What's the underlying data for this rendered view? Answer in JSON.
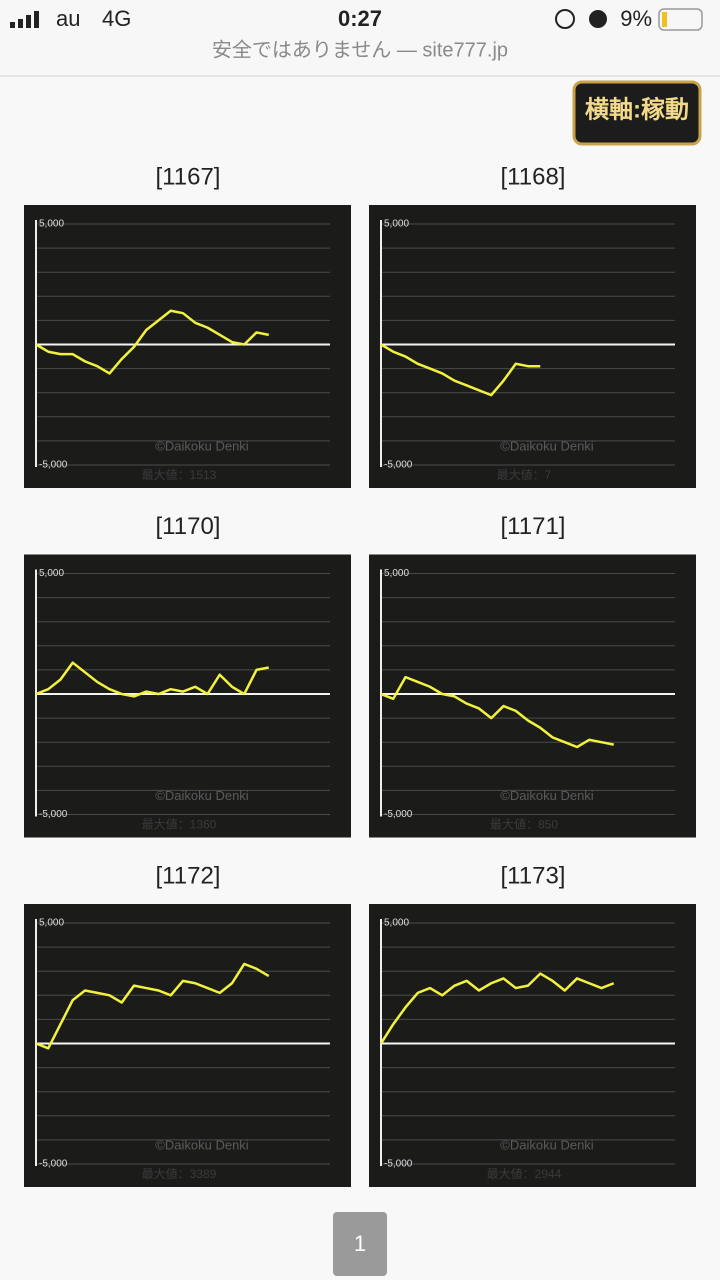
{
  "status_bar": {
    "carrier": "au",
    "network": "4G",
    "time": "0:27",
    "battery": "9%"
  },
  "address": "安全ではありません — site777.jp",
  "toggle_button": "横軸:稼動",
  "pagination": [
    "1"
  ],
  "chart_data": [
    {
      "type": "line",
      "title": "[1167]",
      "ylim": [
        -5000,
        5000
      ],
      "yticks": [
        {
          "value": 5000,
          "label": "5,000"
        },
        {
          "value": -5000,
          "label": "-5,000"
        }
      ],
      "grid_lines": [
        4000,
        3000,
        2000,
        1000,
        0,
        -1000,
        -2000,
        -3000,
        -4000
      ],
      "xlim": [
        0,
        24
      ],
      "color": "#f2f23c",
      "values": [
        0,
        -300,
        -400,
        -400,
        -700,
        -900,
        -1200,
        -600,
        -100,
        600,
        1000,
        1400,
        1300,
        900,
        700,
        400,
        100,
        0,
        500,
        400
      ],
      "watermark": "©Daikoku Denki",
      "annotation": "最大値：1513"
    },
    {
      "type": "line",
      "title": "[1168]",
      "ylim": [
        -5000,
        5000
      ],
      "yticks": [
        {
          "value": 5000,
          "label": "5,000"
        },
        {
          "value": -5000,
          "label": "-5,000"
        }
      ],
      "grid_lines": [
        4000,
        3000,
        2000,
        1000,
        0,
        -1000,
        -2000,
        -3000,
        -4000
      ],
      "xlim": [
        0,
        24
      ],
      "color": "#f2f23c",
      "values": [
        0,
        -300,
        -500,
        -800,
        -1000,
        -1200,
        -1500,
        -1700,
        -1900,
        -2100,
        -1500,
        -800,
        -900,
        -900
      ],
      "watermark": "©Daikoku Denki",
      "annotation": "最大値：7"
    },
    {
      "type": "line",
      "title": "[1170]",
      "ylim": [
        -5000,
        5000
      ],
      "yticks": [
        {
          "value": 5000,
          "label": "5,000"
        },
        {
          "value": -5000,
          "label": "-5,000"
        }
      ],
      "grid_lines": [
        4000,
        3000,
        2000,
        1000,
        0,
        -1000,
        -2000,
        -3000,
        -4000
      ],
      "xlim": [
        0,
        24
      ],
      "color": "#f2f23c",
      "values": [
        0,
        200,
        600,
        1300,
        900,
        500,
        200,
        0,
        -100,
        100,
        0,
        200,
        100,
        300,
        0,
        800,
        300,
        0,
        1000,
        1100
      ],
      "watermark": "©Daikoku Denki",
      "annotation": "最大値：1360"
    },
    {
      "type": "line",
      "title": "[1171]",
      "ylim": [
        -5000,
        5000
      ],
      "yticks": [
        {
          "value": 5000,
          "label": "5,000"
        },
        {
          "value": -5000,
          "label": "-5,000"
        }
      ],
      "grid_lines": [
        4000,
        3000,
        2000,
        1000,
        0,
        -1000,
        -2000,
        -3000,
        -4000
      ],
      "xlim": [
        0,
        24
      ],
      "color": "#f2f23c",
      "values": [
        0,
        -200,
        700,
        500,
        300,
        0,
        -100,
        -400,
        -600,
        -1000,
        -500,
        -700,
        -1100,
        -1400,
        -1800,
        -2000,
        -2200,
        -1900,
        -2000,
        -2100
      ],
      "watermark": "©Daikoku Denki",
      "annotation": "最大値：850"
    },
    {
      "type": "line",
      "title": "[1172]",
      "ylim": [
        -5000,
        5000
      ],
      "yticks": [
        {
          "value": 5000,
          "label": "5,000"
        },
        {
          "value": -5000,
          "label": "-5,000"
        }
      ],
      "grid_lines": [
        4000,
        3000,
        2000,
        1000,
        0,
        -1000,
        -2000,
        -3000,
        -4000
      ],
      "xlim": [
        0,
        24
      ],
      "color": "#f2f23c",
      "values": [
        0,
        -200,
        800,
        1800,
        2200,
        2100,
        2000,
        1700,
        2400,
        2300,
        2200,
        2000,
        2600,
        2500,
        2300,
        2100,
        2500,
        3300,
        3100,
        2800
      ],
      "watermark": "©Daikoku Denki",
      "annotation": "最大値：3389"
    },
    {
      "type": "line",
      "title": "[1173]",
      "ylim": [
        -5000,
        5000
      ],
      "yticks": [
        {
          "value": 5000,
          "label": "5,000"
        },
        {
          "value": -5000,
          "label": "-5,000"
        }
      ],
      "grid_lines": [
        4000,
        3000,
        2000,
        1000,
        0,
        -1000,
        -2000,
        -3000,
        -4000
      ],
      "xlim": [
        0,
        24
      ],
      "color": "#f2f23c",
      "values": [
        0,
        800,
        1500,
        2100,
        2300,
        2000,
        2400,
        2600,
        2200,
        2500,
        2700,
        2300,
        2400,
        2900,
        2600,
        2200,
        2700,
        2500,
        2300,
        2500
      ],
      "watermark": "©Daikoku Denki",
      "annotation": "最大値：2944"
    }
  ]
}
